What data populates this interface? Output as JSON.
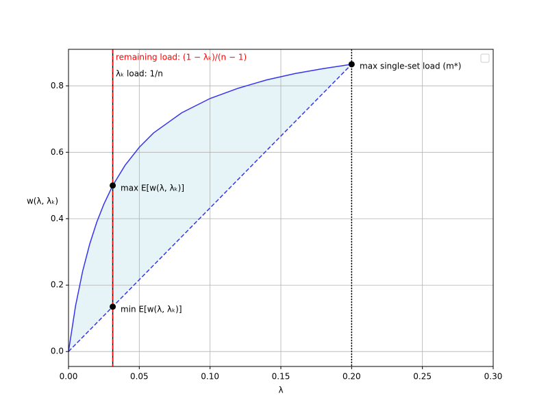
{
  "chart_data": {
    "type": "line",
    "xlabel": "λ",
    "ylabel": "w(λ, λₖ)",
    "xlim": [
      0,
      0.3
    ],
    "ylim": [
      -0.045,
      0.91
    ],
    "xticks": [
      {
        "value": 0,
        "label": "0.00"
      },
      {
        "value": 0.05,
        "label": "0.05"
      },
      {
        "value": 0.1,
        "label": "0.10"
      },
      {
        "value": 0.15,
        "label": "0.15"
      },
      {
        "value": 0.2,
        "label": "0.20"
      },
      {
        "value": 0.25,
        "label": "0.25"
      },
      {
        "value": 0.3,
        "label": "0.30"
      }
    ],
    "yticks": [
      {
        "value": 0,
        "label": "0.0"
      },
      {
        "value": 0.2,
        "label": "0.2"
      },
      {
        "value": 0.4,
        "label": "0.4"
      },
      {
        "value": 0.6,
        "label": "0.6"
      },
      {
        "value": 0.8,
        "label": "0.8"
      }
    ],
    "grid": true,
    "series": [
      {
        "color": "#3333ee",
        "style": "solid",
        "x": [
          0,
          0.005,
          0.01,
          0.015,
          0.02,
          0.025,
          0.03125,
          0.04,
          0.05,
          0.06,
          0.08,
          0.1,
          0.12,
          0.14,
          0.16,
          0.18,
          0.2
        ],
        "values": [
          0,
          0.138,
          0.242,
          0.324,
          0.39,
          0.444,
          0.5,
          0.561,
          0.615,
          0.658,
          0.719,
          0.762,
          0.793,
          0.818,
          0.837,
          0.852,
          0.865
        ]
      },
      {
        "color": "#3333ee",
        "style": "dashed",
        "x": [
          0,
          0.2
        ],
        "values": [
          0,
          0.865
        ]
      }
    ],
    "fill_color": "#add8e6",
    "vlines": [
      {
        "x": 0.03125,
        "color": "#000000",
        "style": "solid"
      },
      {
        "x": 0.03125,
        "color": "#ff0000",
        "style": "dashed"
      },
      {
        "x": 0.2,
        "color": "#000000",
        "style": "dotted"
      }
    ],
    "points": [
      {
        "x": 0.03125,
        "y": 0.5
      },
      {
        "x": 0.03125,
        "y": 0.135
      },
      {
        "x": 0.2,
        "y": 0.865
      }
    ],
    "annotations": [
      {
        "text": "remaining load: (1 − λₖ)/(n − 1)",
        "color": "#ff0000"
      },
      {
        "text": "λₖ load: 1/n",
        "color": "#000000"
      },
      {
        "text": "max E[w(λ, λₖ)]",
        "color": "#000000"
      },
      {
        "text": "min E[w(λ, λₖ)]",
        "color": "#000000"
      },
      {
        "text": "max single-set load (m*)",
        "color": "#000000"
      }
    ]
  }
}
